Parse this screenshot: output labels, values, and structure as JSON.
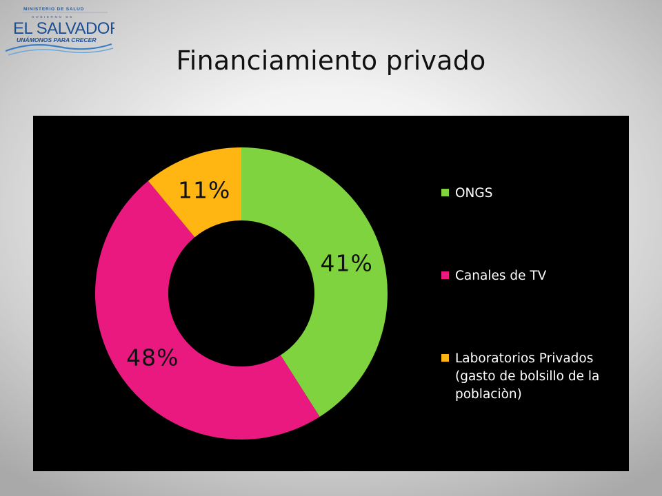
{
  "logo": {
    "ministry": "MINISTERIO DE SALUD",
    "government": "GOBIERNO DE",
    "country": "EL SALVADOR",
    "slogan": "UNÁMONOS PARA CRECER"
  },
  "slide": {
    "title": "Financiamiento privado"
  },
  "chart_data": {
    "type": "pie",
    "donut": true,
    "categories": [
      "ONGS",
      "Canales de TV",
      "Laboratorios Privados (gasto de bolsillo de la poblaciòn)"
    ],
    "values": [
      41,
      48,
      11
    ],
    "labels": [
      "41%",
      "48%",
      "11%"
    ],
    "colors": [
      "#7fd33f",
      "#e9197f",
      "#ffb612"
    ],
    "legend": "right",
    "background": "#000000"
  }
}
